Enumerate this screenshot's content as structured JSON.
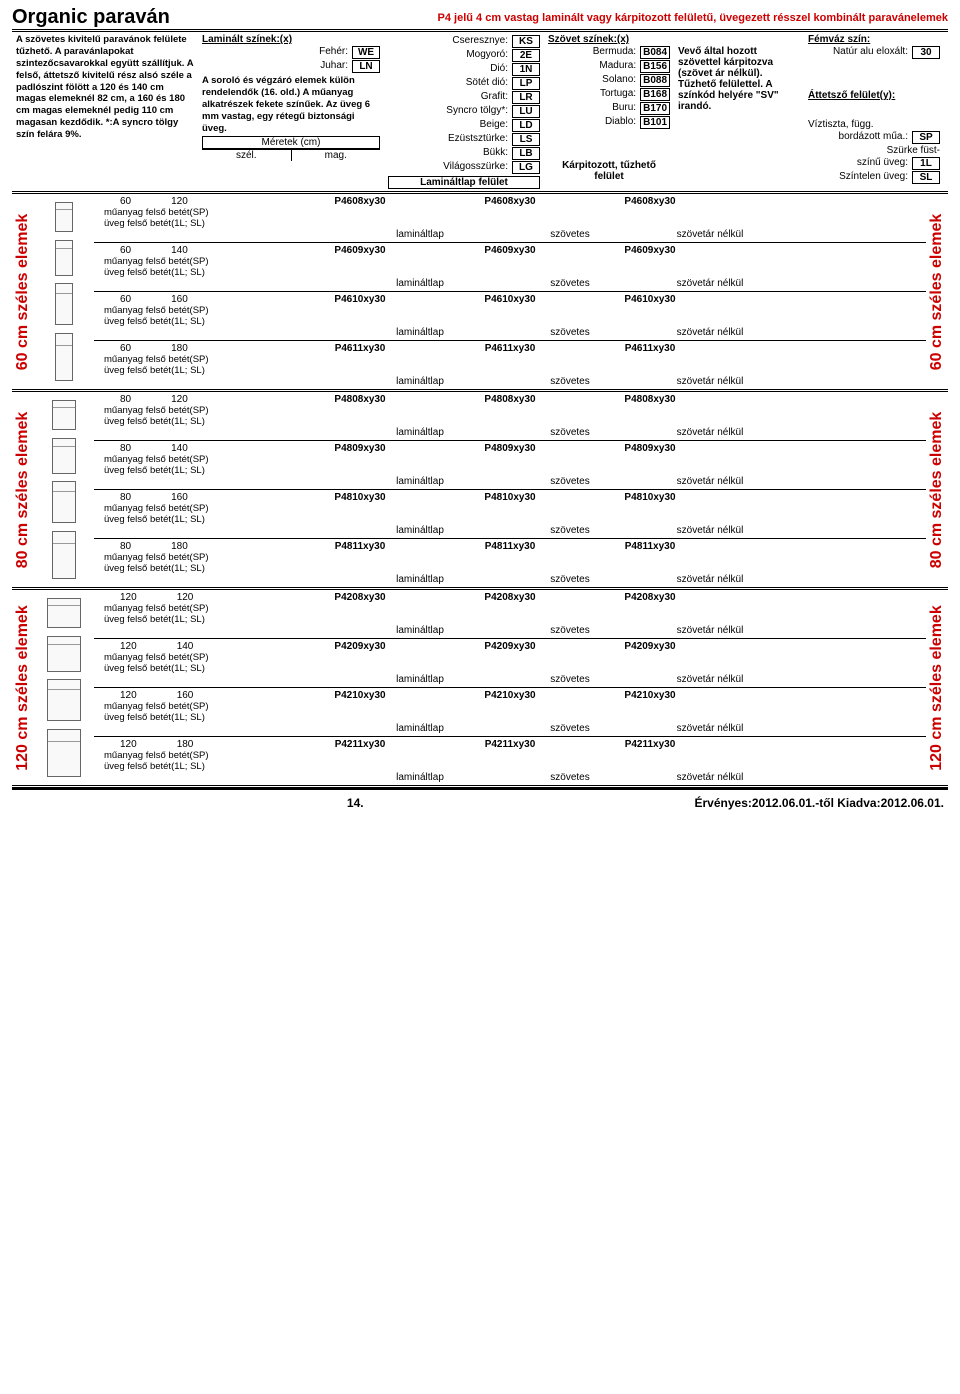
{
  "header": {
    "title": "Organic paraván",
    "subtitle": "P4 jelű 4 cm vastag laminált vagy kárpitozott felületű, üvegezett résszel kombinált paravánelemek"
  },
  "topnotes": {
    "leftText": "A szövetes kivitelű paravánok felülete tűzhető. A paravánlapokat szintezőcsavarokkal együtt szállítjuk. A felső, áttetsző kivitelű rész alsó széle a padlószint fölött a 120 és 140 cm magas elemeknél 82 cm, a 160 és 180 cm magas elemeknél pedig 110 cm magasan kezdődik.  *:A syncro tölgy szín felára 9%.",
    "laminaltHdr": "Laminált  színek:(x)",
    "laminalt": [
      {
        "l": "Fehér:",
        "c": "WE"
      },
      {
        "l": "Juhar:",
        "c": "LN"
      }
    ],
    "laminaltNote": "A soroló és végzáró elemek külön rendelendők (16. old.) A műanyag alkatrészek fekete színűek. Az üveg 6 mm vastag, egy rétegű biztonsági üveg.",
    "meretek": "Méretek (cm)",
    "szel": "szél.",
    "mag": "mag.",
    "col3": [
      {
        "l": "Cseresznye:",
        "c": "KS"
      },
      {
        "l": "Mogyoró:",
        "c": "2E"
      },
      {
        "l": "Dió:",
        "c": "1N"
      },
      {
        "l": "Sötét dió:",
        "c": "LP"
      },
      {
        "l": "Grafit:",
        "c": "LR"
      },
      {
        "l": "Syncro tölgy*:",
        "c": "LU"
      },
      {
        "l": "Beige:",
        "c": "LD"
      },
      {
        "l": "Ezüstsztürke:",
        "c": "LS"
      },
      {
        "l": "Bükk:",
        "c": "LB"
      },
      {
        "l": "Világosszürke:",
        "c": "LG"
      }
    ],
    "lamfel": "Lamináltlap felület",
    "szovetHdr": "Szövet színek:(x)",
    "szovet": [
      {
        "l": "Bermuda:",
        "c": "B084"
      },
      {
        "l": "Madura:",
        "c": "B156"
      },
      {
        "l": "Solano:",
        "c": "B088"
      },
      {
        "l": "Tortuga:",
        "c": "B168"
      },
      {
        "l": "Buru:",
        "c": "B170"
      },
      {
        "l": "Diablo:",
        "c": "B101"
      }
    ],
    "karpit": "Kárpitozott, tűzhető felület",
    "vevoNote": "Vevő által hozott szövettel kárpitozva (szövet ár nélkül). Tűzhető felülettel. A színkód helyére \"SV\" irandó.",
    "femvaz": "Fémváz szín:",
    "natur": {
      "l": "Natúr alu eloxált:",
      "c": "30"
    },
    "attetszo": "Áttetsző felület(y):",
    "viztiszta": "Víztiszta, függ.",
    "bordazott": {
      "l": "bordázott műa.:",
      "c": "SP"
    },
    "szurke": "Szürke füst-",
    "szinu": {
      "l": "színű üveg:",
      "c": "1L"
    },
    "szintelen": {
      "l": "Színtelen üveg:",
      "c": "SL"
    }
  },
  "sections": [
    {
      "label": "60 cm széles elemek",
      "iconHeights": [
        30,
        36,
        42,
        48
      ],
      "rows": [
        {
          "w": "60",
          "h": "120",
          "c": "P4608xy30"
        },
        {
          "w": "60",
          "h": "140",
          "c": "P4609xy30"
        },
        {
          "w": "60",
          "h": "160",
          "c": "P4610xy30"
        },
        {
          "w": "60",
          "h": "180",
          "c": "P4611xy30"
        }
      ]
    },
    {
      "label": "80 cm széles elemek",
      "iconHeights": [
        30,
        36,
        42,
        48
      ],
      "rows": [
        {
          "w": "80",
          "h": "120",
          "c": "P4808xy30"
        },
        {
          "w": "80",
          "h": "140",
          "c": "P4809xy30"
        },
        {
          "w": "80",
          "h": "160",
          "c": "P4810xy30"
        },
        {
          "w": "80",
          "h": "180",
          "c": "P4811xy30"
        }
      ]
    },
    {
      "label": "120 cm széles elemek",
      "iconHeights": [
        30,
        36,
        42,
        48
      ],
      "rows": [
        {
          "w": "120",
          "h": "120",
          "c": "P4208xy30"
        },
        {
          "w": "120",
          "h": "140",
          "c": "P4209xy30"
        },
        {
          "w": "120",
          "h": "160",
          "c": "P4210xy30"
        },
        {
          "w": "120",
          "h": "180",
          "c": "P4211xy30"
        }
      ]
    }
  ],
  "rowCommon": {
    "sub1": "műanyag felső betét(SP)",
    "sub2": "üveg felső betét(1L; SL)",
    "f1": "lamináltlap",
    "f2": "szövetes",
    "f3": "szövetár nélkül"
  },
  "footer": {
    "page": "14.",
    "valid": "Érvényes:2012.06.01.-től Kiadva:2012.06.01."
  }
}
